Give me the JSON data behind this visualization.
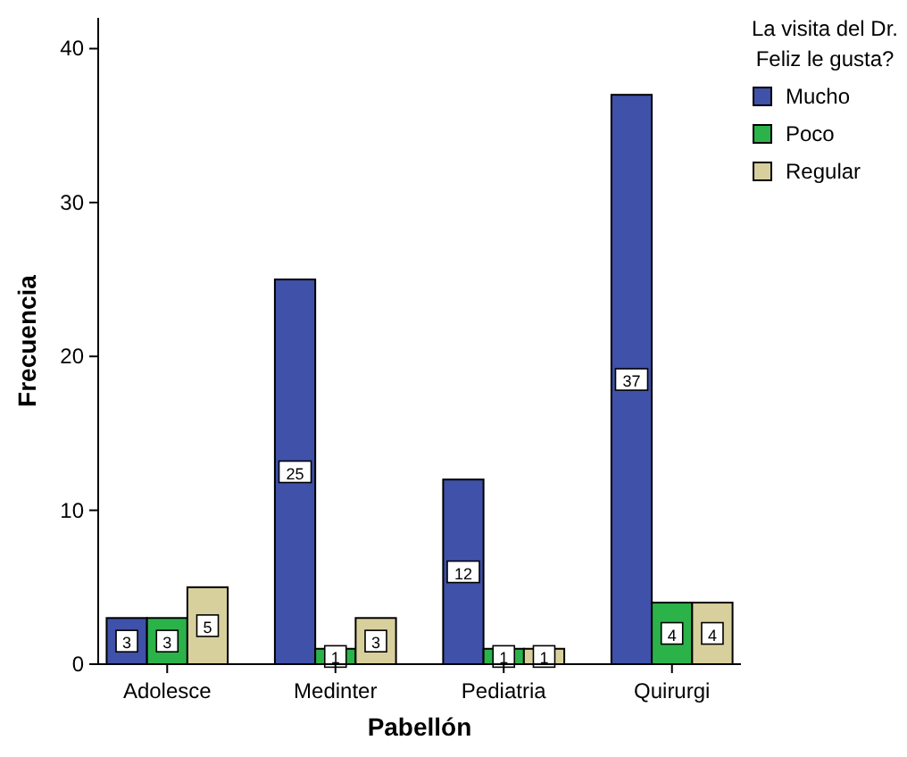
{
  "chart_data": {
    "type": "bar",
    "xlabel": "Pabellón",
    "ylabel": "Frecuencia",
    "legend_title": "La visita del Dr. Feliz le gusta?",
    "categories": [
      "Adolesce",
      "Medinter",
      "Pediatria",
      "Quirurgi"
    ],
    "series": [
      {
        "name": "Mucho",
        "color": "#3f51a8",
        "values": [
          3,
          25,
          12,
          37
        ]
      },
      {
        "name": "Poco",
        "color": "#2bb34a",
        "values": [
          3,
          1,
          1,
          4
        ]
      },
      {
        "name": "Regular",
        "color": "#d8d09c",
        "values": [
          5,
          3,
          1,
          4
        ]
      }
    ],
    "ylim": [
      0,
      42
    ],
    "yticks": [
      0,
      10,
      20,
      30,
      40
    ],
    "grid": false,
    "legend": "right",
    "data_labels": true
  }
}
